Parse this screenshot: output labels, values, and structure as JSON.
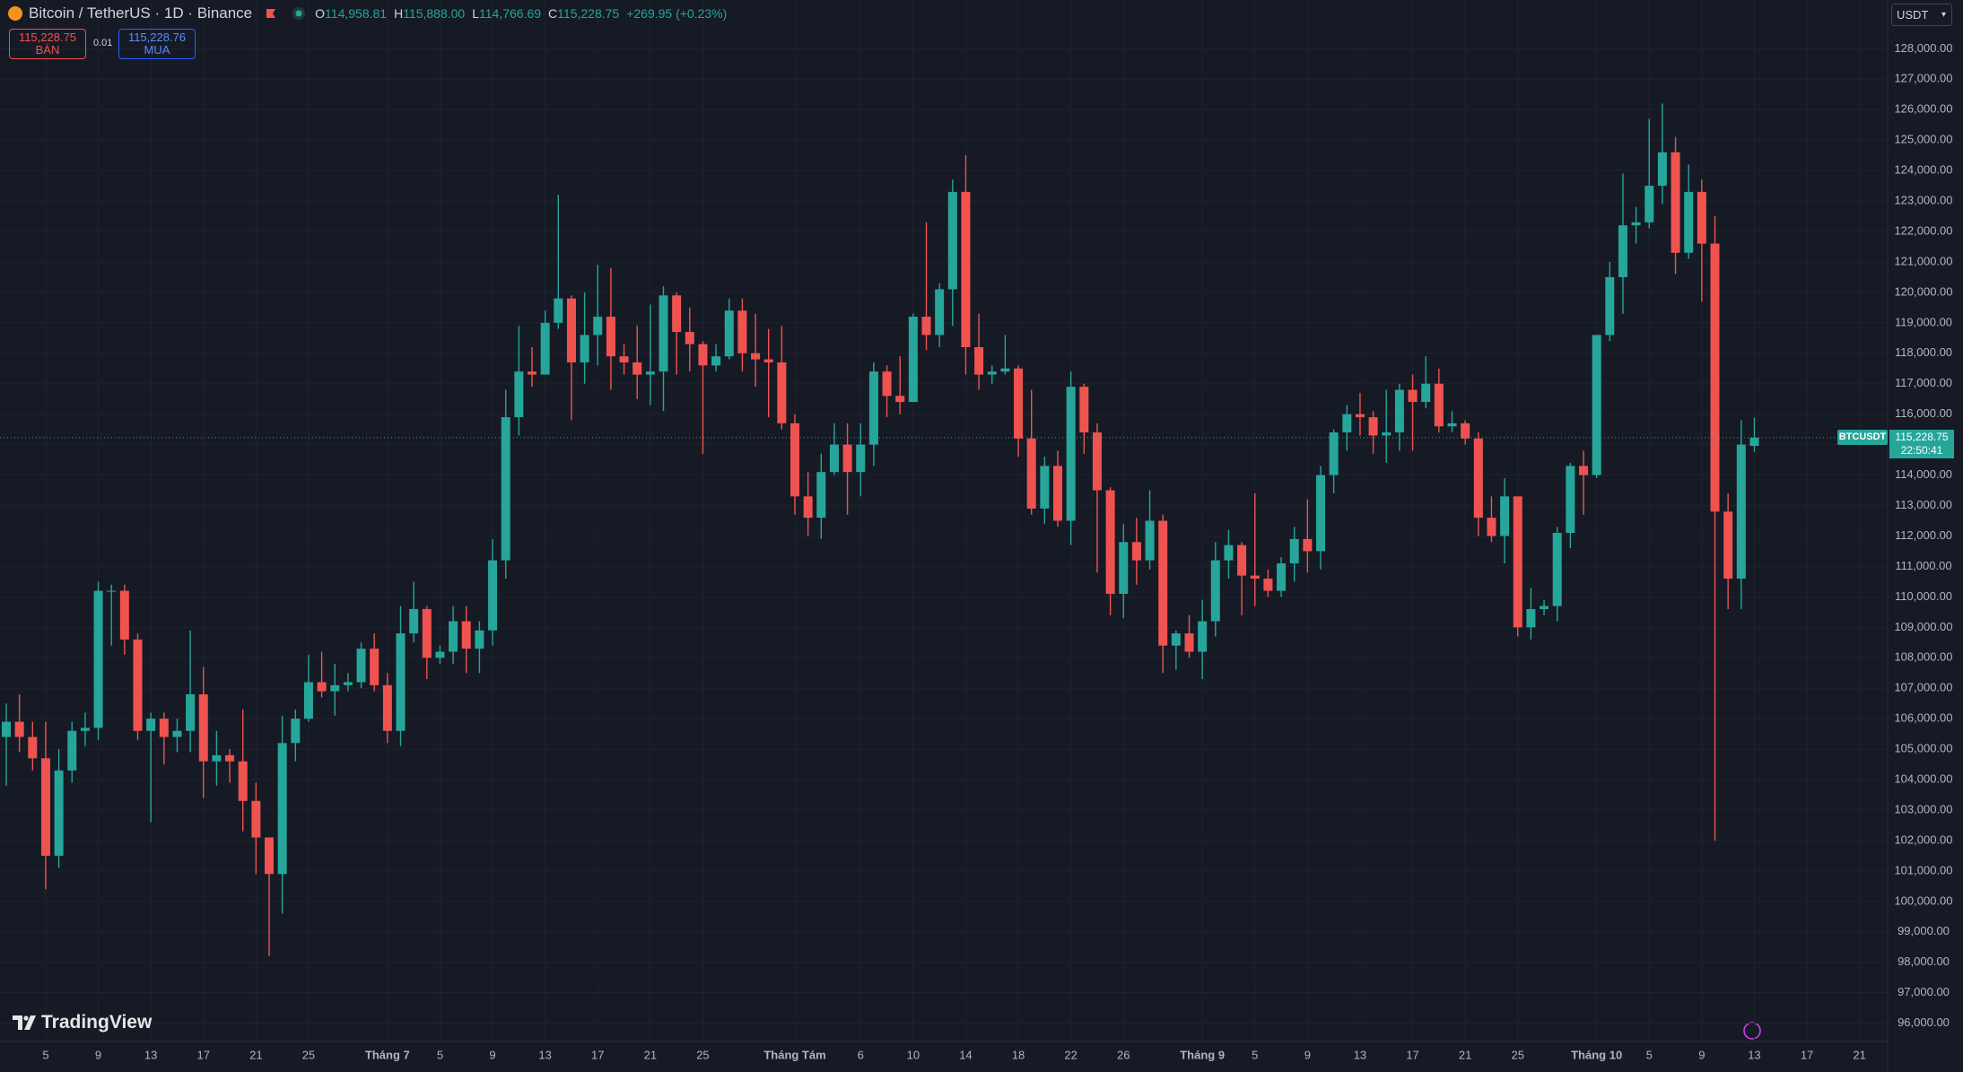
{
  "header": {
    "symbol": "Bitcoin / TetherUS · 1D · Binance",
    "o_label": "O",
    "o": "114,958.81",
    "h_label": "H",
    "h": "115,888.00",
    "l_label": "L",
    "l": "114,766.69",
    "c_label": "C",
    "c": "115,228.75",
    "change": "+269.95 (+0.23%)"
  },
  "order": {
    "sell": "115,228.75",
    "sell_label": "BÁN",
    "spread": "0.01",
    "buy": "115,228.76",
    "buy_label": "MUA"
  },
  "currency": "USDT",
  "brand": "TradingView",
  "last_price": {
    "symbol": "BTCUSDT",
    "price": "115,228.75",
    "countdown": "22:50:41"
  },
  "chart_data": {
    "type": "candlestick",
    "up_color": "#26a69a",
    "down_color": "#ef5350",
    "grid": true,
    "x": [
      "06-02",
      "06-03",
      "06-04",
      "06-05",
      "06-06",
      "06-07",
      "06-08",
      "06-09",
      "06-10",
      "06-11",
      "06-12",
      "06-13",
      "06-14",
      "06-15",
      "06-16",
      "06-17",
      "06-18",
      "06-19",
      "06-20",
      "06-21",
      "06-22",
      "06-23",
      "06-24",
      "06-25",
      "06-26",
      "06-27",
      "06-28",
      "06-29",
      "06-30",
      "07-01",
      "07-02",
      "07-03",
      "07-04",
      "07-05",
      "07-06",
      "07-07",
      "07-08",
      "07-09",
      "07-10",
      "07-11",
      "07-12",
      "07-13",
      "07-14",
      "07-15",
      "07-16",
      "07-17",
      "07-18",
      "07-19",
      "07-20",
      "07-21",
      "07-22",
      "07-23",
      "07-24",
      "07-25",
      "07-26",
      "07-27",
      "07-28",
      "07-29",
      "07-30",
      "07-31",
      "08-01",
      "08-02",
      "08-03",
      "08-04",
      "08-05",
      "08-06",
      "08-07",
      "08-08",
      "08-09",
      "08-10",
      "08-11",
      "08-12",
      "08-13",
      "08-14",
      "08-15",
      "08-16",
      "08-17",
      "08-18",
      "08-19",
      "08-20",
      "08-21",
      "08-22",
      "08-23",
      "08-24",
      "08-25",
      "08-26",
      "08-27",
      "08-28",
      "08-29",
      "08-30",
      "08-31",
      "09-01",
      "09-02",
      "09-03",
      "09-04",
      "09-05",
      "09-06",
      "09-07",
      "09-08",
      "09-09",
      "09-10",
      "09-11",
      "09-12",
      "09-13",
      "09-14",
      "09-15",
      "09-16",
      "09-17",
      "09-18",
      "09-19",
      "09-20",
      "09-21",
      "09-22",
      "09-23",
      "09-24",
      "09-25",
      "09-26",
      "09-27",
      "09-28",
      "09-29",
      "09-30",
      "10-01",
      "10-02",
      "10-03",
      "10-04",
      "10-05",
      "10-06",
      "10-07",
      "10-08",
      "10-09",
      "10-10",
      "10-11",
      "10-12",
      "10-13"
    ],
    "open": [
      105400,
      105900,
      105400,
      104700,
      101500,
      104300,
      105600,
      105700,
      110200,
      110200,
      108600,
      105600,
      106000,
      105400,
      105600,
      106800,
      104600,
      104800,
      104600,
      103300,
      102100,
      100900,
      105200,
      106000,
      107200,
      106900,
      107100,
      107200,
      108300,
      107100,
      105600,
      108800,
      109600,
      108000,
      108200,
      109200,
      108300,
      108900,
      111200,
      115900,
      117400,
      117300,
      119000,
      119800,
      117700,
      118600,
      119200,
      117900,
      117700,
      117300,
      117400,
      119900,
      118700,
      118300,
      117600,
      117900,
      119400,
      118000,
      117800,
      117700,
      115700,
      113300,
      112600,
      114100,
      115000,
      114100,
      115000,
      117400,
      116600,
      116400,
      119200,
      118600,
      120100,
      123300,
      118200,
      117300,
      117400,
      117500,
      115200,
      112900,
      114300,
      112500,
      116900,
      115400,
      113500,
      110100,
      111800,
      111200,
      112500,
      108400,
      108800,
      108200,
      109200,
      111200,
      111700,
      110700,
      110600,
      110200,
      111100,
      111900,
      111500,
      114000,
      115400,
      116000,
      115900,
      115300,
      115400,
      116800,
      116400,
      117000,
      115600,
      115700,
      115200,
      112600,
      112000,
      113300,
      109000,
      109600,
      109700,
      112100,
      114300,
      114000,
      118600,
      120500,
      122200,
      122300,
      123500,
      124600,
      121300,
      123300,
      121600,
      112800,
      110600,
      114958.81
    ],
    "high": [
      106500,
      106800,
      105900,
      105900,
      105000,
      105900,
      106200,
      110500,
      110400,
      110400,
      108800,
      106200,
      106200,
      106000,
      108900,
      107700,
      105600,
      105000,
      106300,
      103900,
      102100,
      106100,
      106300,
      108100,
      108200,
      107800,
      107500,
      108500,
      108800,
      107500,
      109700,
      110500,
      109700,
      108400,
      109700,
      109700,
      109200,
      111900,
      116800,
      118900,
      118200,
      119400,
      123200,
      119900,
      120000,
      120900,
      120800,
      118300,
      118900,
      119600,
      120200,
      120000,
      119500,
      118400,
      118300,
      119800,
      119800,
      119300,
      118800,
      118900,
      116000,
      114100,
      114700,
      115700,
      115700,
      115700,
      117700,
      117600,
      117900,
      119300,
      122300,
      120300,
      123700,
      124500,
      119300,
      117600,
      118600,
      117600,
      116800,
      114600,
      114800,
      117400,
      117000,
      115700,
      113600,
      112400,
      112600,
      113500,
      112700,
      108900,
      109400,
      109900,
      111800,
      112200,
      111800,
      113400,
      110900,
      111300,
      112300,
      113200,
      114300,
      115500,
      116300,
      116700,
      116100,
      116800,
      117000,
      117300,
      117900,
      117500,
      116100,
      115800,
      115400,
      113300,
      113900,
      113300,
      110300,
      109900,
      112300,
      114400,
      114800,
      118600,
      121000,
      123900,
      122800,
      125700,
      126200,
      125100,
      124200,
      123700,
      122500,
      113400,
      115800,
      115888
    ],
    "low": [
      103800,
      104900,
      104300,
      100400,
      101100,
      103900,
      105100,
      105300,
      108400,
      108100,
      105300,
      102600,
      104500,
      104900,
      104900,
      103400,
      103800,
      103900,
      102300,
      100900,
      98200,
      99600,
      104600,
      105900,
      106700,
      106100,
      106900,
      107000,
      106900,
      105200,
      105100,
      108500,
      107300,
      107800,
      107800,
      107500,
      107500,
      108400,
      110600,
      115300,
      116900,
      117300,
      118800,
      115800,
      117000,
      117600,
      116800,
      117300,
      116500,
      116300,
      116100,
      117300,
      117400,
      114700,
      117400,
      117800,
      117400,
      116900,
      115900,
      115500,
      112700,
      112000,
      111900,
      114000,
      112700,
      113300,
      114300,
      115900,
      116000,
      116500,
      118100,
      118200,
      118900,
      117300,
      116800,
      117000,
      117300,
      114600,
      112700,
      112400,
      112300,
      111700,
      114700,
      110800,
      109400,
      109300,
      110400,
      110900,
      107500,
      107600,
      108000,
      107300,
      108700,
      110600,
      109400,
      109700,
      110000,
      110000,
      110500,
      110800,
      110900,
      113400,
      114800,
      115300,
      114700,
      114400,
      114800,
      114800,
      116200,
      115400,
      115400,
      115000,
      112000,
      111800,
      111100,
      108700,
      108600,
      109400,
      109200,
      111600,
      112700,
      113900,
      118400,
      119300,
      121600,
      122100,
      122900,
      120600,
      121100,
      119700,
      102000,
      109600,
      109600,
      114766.69
    ],
    "close": [
      105900,
      105400,
      104700,
      101500,
      104300,
      105600,
      105700,
      110200,
      110200,
      108600,
      105600,
      106000,
      105400,
      105600,
      106800,
      104600,
      104800,
      104600,
      103300,
      102100,
      100900,
      105200,
      106000,
      107200,
      106900,
      107100,
      107200,
      108300,
      107100,
      105600,
      108800,
      109600,
      108000,
      108200,
      109200,
      108300,
      108900,
      111200,
      115900,
      117400,
      117300,
      119000,
      119800,
      117700,
      118600,
      119200,
      117900,
      117700,
      117300,
      117400,
      119900,
      118700,
      118300,
      117600,
      117900,
      119400,
      118000,
      117800,
      117700,
      115700,
      113300,
      112600,
      114100,
      115000,
      114100,
      115000,
      117400,
      116600,
      116400,
      119200,
      118600,
      120100,
      123300,
      118200,
      117300,
      117400,
      117500,
      115200,
      112900,
      114300,
      112500,
      116900,
      115400,
      113500,
      110100,
      111800,
      111200,
      112500,
      108400,
      108800,
      108200,
      109200,
      111200,
      111700,
      110700,
      110600,
      110200,
      111100,
      111900,
      111500,
      114000,
      115400,
      116000,
      115900,
      115300,
      115400,
      116800,
      116400,
      117000,
      115600,
      115700,
      115200,
      112600,
      112000,
      113300,
      109000,
      109600,
      109700,
      112100,
      114300,
      114000,
      118600,
      120500,
      122200,
      122300,
      123500,
      124600,
      121300,
      123300,
      121600,
      112800,
      110600,
      115000,
      115228.75
    ],
    "ylim": [
      95400,
      129600
    ],
    "yticks": [
      {
        "value": 96000,
        "label": "96,000.00"
      },
      {
        "value": 97000,
        "label": "97,000.00"
      },
      {
        "value": 98000,
        "label": "98,000.00"
      },
      {
        "value": 99000,
        "label": "99,000.00"
      },
      {
        "value": 100000,
        "label": "100,000.00"
      },
      {
        "value": 101000,
        "label": "101,000.00"
      },
      {
        "value": 102000,
        "label": "102,000.00"
      },
      {
        "value": 103000,
        "label": "103,000.00"
      },
      {
        "value": 104000,
        "label": "104,000.00"
      },
      {
        "value": 105000,
        "label": "105,000.00"
      },
      {
        "value": 106000,
        "label": "106,000.00"
      },
      {
        "value": 107000,
        "label": "107,000.00"
      },
      {
        "value": 108000,
        "label": "108,000.00"
      },
      {
        "value": 109000,
        "label": "109,000.00"
      },
      {
        "value": 110000,
        "label": "110,000.00"
      },
      {
        "value": 111000,
        "label": "111,000.00"
      },
      {
        "value": 112000,
        "label": "112,000.00"
      },
      {
        "value": 113000,
        "label": "113,000.00"
      },
      {
        "value": 114000,
        "label": "114,000.00"
      },
      {
        "value": 115000,
        "label": "115,000.00"
      },
      {
        "value": 116000,
        "label": "116,000.00"
      },
      {
        "value": 117000,
        "label": "117,000.00"
      },
      {
        "value": 118000,
        "label": "118,000.00"
      },
      {
        "value": 119000,
        "label": "119,000.00"
      },
      {
        "value": 120000,
        "label": "120,000.00"
      },
      {
        "value": 121000,
        "label": "121,000.00"
      },
      {
        "value": 122000,
        "label": "122,000.00"
      },
      {
        "value": 123000,
        "label": "123,000.00"
      },
      {
        "value": 124000,
        "label": "124,000.00"
      },
      {
        "value": 125000,
        "label": "125,000.00"
      },
      {
        "value": 126000,
        "label": "126,000.00"
      },
      {
        "value": 127000,
        "label": "127,000.00"
      },
      {
        "value": 128000,
        "label": "128,000.00"
      }
    ],
    "xticks": [
      {
        "value": "06-05",
        "label": "5"
      },
      {
        "value": "06-09",
        "label": "9"
      },
      {
        "value": "06-13",
        "label": "13"
      },
      {
        "value": "06-17",
        "label": "17"
      },
      {
        "value": "06-21",
        "label": "21"
      },
      {
        "value": "06-25",
        "label": "25"
      },
      {
        "value": "07-01",
        "label": "Tháng 7"
      },
      {
        "value": "07-05",
        "label": "5"
      },
      {
        "value": "07-09",
        "label": "9"
      },
      {
        "value": "07-13",
        "label": "13"
      },
      {
        "value": "07-17",
        "label": "17"
      },
      {
        "value": "07-21",
        "label": "21"
      },
      {
        "value": "07-25",
        "label": "25"
      },
      {
        "value": "08-01",
        "label": "Tháng Tám"
      },
      {
        "value": "08-06",
        "label": "6"
      },
      {
        "value": "08-10",
        "label": "10"
      },
      {
        "value": "08-14",
        "label": "14"
      },
      {
        "value": "08-18",
        "label": "18"
      },
      {
        "value": "08-22",
        "label": "22"
      },
      {
        "value": "08-26",
        "label": "26"
      },
      {
        "value": "09-01",
        "label": "Tháng 9"
      },
      {
        "value": "09-05",
        "label": "5"
      },
      {
        "value": "09-09",
        "label": "9"
      },
      {
        "value": "09-13",
        "label": "13"
      },
      {
        "value": "09-17",
        "label": "17"
      },
      {
        "value": "09-21",
        "label": "21"
      },
      {
        "value": "09-25",
        "label": "25"
      },
      {
        "value": "10-01",
        "label": "Tháng 10"
      },
      {
        "value": "10-05",
        "label": "5"
      },
      {
        "value": "10-09",
        "label": "9"
      },
      {
        "value": "10-13",
        "label": "13"
      },
      {
        "value": "10-17",
        "label": "17"
      },
      {
        "value": "10-21",
        "label": "21"
      }
    ]
  }
}
